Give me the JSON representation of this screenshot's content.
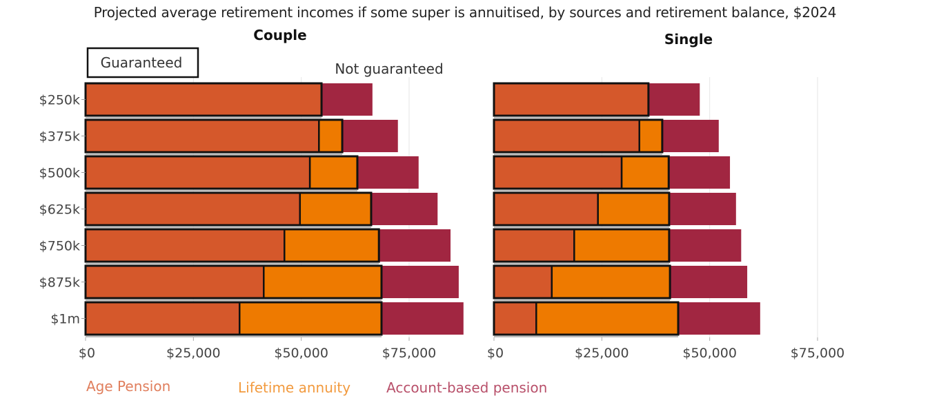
{
  "chart_data": {
    "type": "bar",
    "orientation": "horizontal",
    "stacked": true,
    "title": "Projected average retirement incomes if some super is annuitised, by sources and retirement balance, $2024",
    "categories": [
      "$250k",
      "$375k",
      "$500k",
      "$625k",
      "$750k",
      "$875k",
      "$1m"
    ],
    "xlim": [
      0,
      80000
    ],
    "xticks": [
      0,
      25000,
      50000,
      75000
    ],
    "xtick_labels": [
      "$0",
      "$25,000",
      "$50,000",
      "$75,000"
    ],
    "grid": true,
    "legend": {
      "placement": "bottom",
      "entries": [
        "Age Pension",
        "Lifetime annuity",
        "Account-based pension"
      ]
    },
    "annotations": {
      "guaranteed": "Guaranteed",
      "not_guaranteed": "Not guaranteed"
    },
    "colors": {
      "Age Pension": "#D5582B",
      "Lifetime annuity": "#EE7A00",
      "Account-based pension": "#A12641"
    },
    "panels": [
      {
        "title": "Couple",
        "series": [
          {
            "name": "Age Pension",
            "values": [
              54700,
              54100,
              52000,
              49700,
              46100,
              41300,
              35700
            ]
          },
          {
            "name": "Lifetime annuity",
            "values": [
              0,
              5400,
              11000,
              16500,
              21900,
              27300,
              32900
            ]
          },
          {
            "name": "Account-based pension",
            "values": [
              11800,
              12900,
              14200,
              15400,
              16600,
              17900,
              19000
            ]
          }
        ]
      },
      {
        "title": "Single",
        "series": [
          {
            "name": "Age Pension",
            "values": [
              35800,
              33700,
              29600,
              24100,
              18600,
              13400,
              9800
            ]
          },
          {
            "name": "Lifetime annuity",
            "values": [
              0,
              5300,
              10900,
              16500,
              22000,
              27400,
              32900
            ]
          },
          {
            "name": "Account-based pension",
            "values": [
              11900,
              13100,
              14200,
              15500,
              16700,
              17900,
              19000
            ]
          }
        ]
      }
    ]
  }
}
